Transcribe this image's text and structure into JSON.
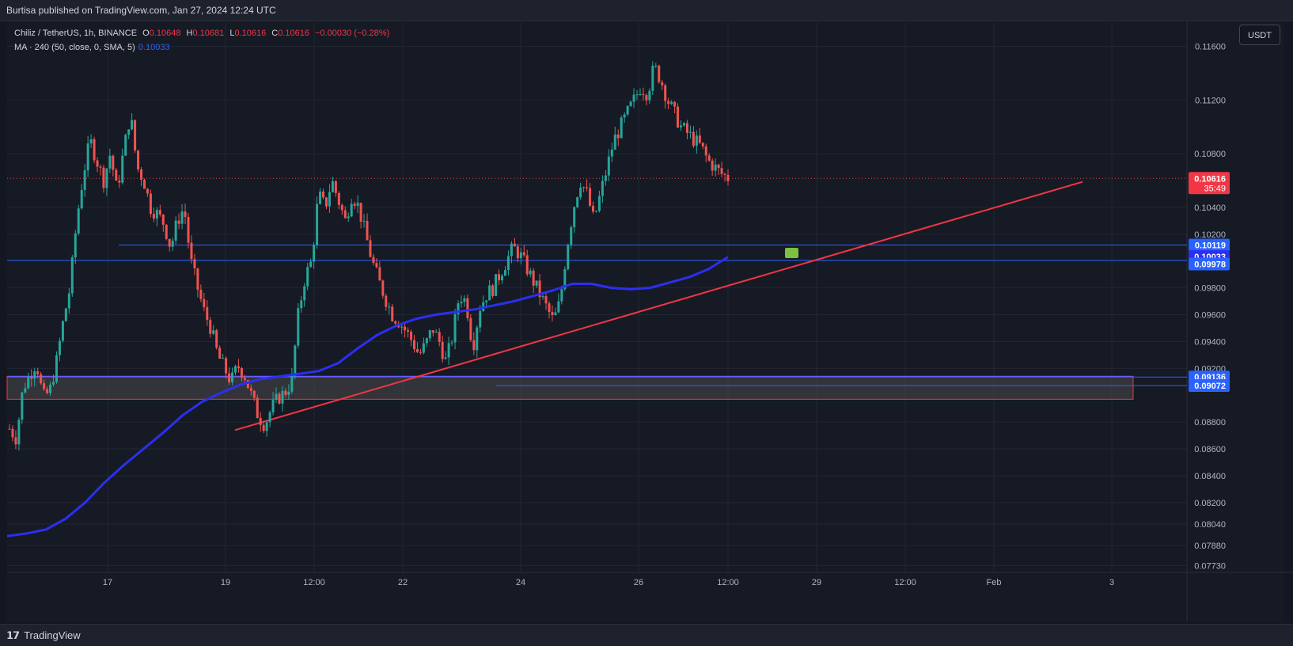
{
  "header": {
    "published": "Burtisa published on TradingView.com, Jan 27, 2024 12:24 UTC"
  },
  "legend": {
    "symbol": "Chiliz / TetherUS, 1h, BINANCE",
    "o_label": "O",
    "o_value": "0.10648",
    "h_label": "H",
    "h_value": "0.10681",
    "l_label": "L",
    "l_value": "0.10616",
    "c_label": "C",
    "c_value": "0.10616",
    "change": "−0.00030 (−0.28%)",
    "ma_label": "MA · 240 (50, close, 0, SMA, 5)",
    "ma_value": "0.10033"
  },
  "currency_button": "USDT",
  "footer": {
    "brand": "TradingView",
    "brand_icon": "tradingview-logo-icon"
  },
  "colors": {
    "up": "#26a69a",
    "down": "#ef5350",
    "ma": "#2c2ff0",
    "trendline": "#f23645",
    "level": "#2962ff",
    "zone": "#4a4a4a"
  },
  "chart_data": {
    "type": "candlestick",
    "title": "Chiliz / TetherUS, 1h, BINANCE",
    "ylim": [
      0.0768,
      0.1178
    ],
    "y_ticks": [
      "0.11600",
      "0.11200",
      "0.10800",
      "0.10400",
      "0.10200",
      "0.09800",
      "0.09600",
      "0.09400",
      "0.09200",
      "0.08800",
      "0.08600",
      "0.08400",
      "0.08200",
      "0.08040",
      "0.07880",
      "0.07730"
    ],
    "x_ticks": [
      "17",
      "19",
      "12:00",
      "22",
      "24",
      "26",
      "12:00",
      "29",
      "12:00",
      "Feb",
      "3"
    ],
    "price_labels": [
      {
        "value": "0.10616",
        "sub": "35:49",
        "color": "#f23645",
        "level": 0.10616
      },
      {
        "value": "0.10119",
        "color": "#2962ff",
        "level": 0.10119
      },
      {
        "value": "0.10033",
        "color": "#2c2ff0",
        "level": 0.10033
      },
      {
        "value": "0.09978",
        "color": "#2962ff",
        "level": 0.09978
      },
      {
        "value": "0.09136",
        "color": "#2962ff",
        "level": 0.09136
      },
      {
        "value": "0.09072",
        "color": "#2962ff",
        "level": 0.09072
      }
    ],
    "horizontal_levels": [
      0.10119,
      0.10004
    ],
    "support_zone": [
      0.0914,
      0.0897
    ],
    "trendline": [
      [
        0.0874,
        0
      ],
      [
        0.1059,
        1
      ]
    ],
    "series": [
      {
        "kind": "candles",
        "close_path": [
          0.0875,
          0.0868,
          0.0905,
          0.0915,
          0.0925,
          0.0898,
          0.0903,
          0.0925,
          0.0955,
          0.098,
          0.103,
          0.1065,
          0.109,
          0.1075,
          0.106,
          0.108,
          0.1052,
          0.1082,
          0.111,
          0.107,
          0.106,
          0.104,
          0.1035,
          0.1028,
          0.101,
          0.103,
          0.104,
          0.1,
          0.098,
          0.0962,
          0.095,
          0.093,
          0.092,
          0.091,
          0.0922,
          0.0915,
          0.09,
          0.0885,
          0.0878,
          0.089,
          0.0898,
          0.0902,
          0.091,
          0.096,
          0.0988,
          0.1,
          0.105,
          0.104,
          0.106,
          0.1045,
          0.103,
          0.105,
          0.104,
          0.102,
          0.1,
          0.0985,
          0.0972,
          0.096,
          0.0955,
          0.0948,
          0.094,
          0.093,
          0.0938,
          0.095,
          0.094,
          0.0925,
          0.0945,
          0.0975,
          0.097,
          0.0935,
          0.0965,
          0.0975,
          0.098,
          0.099,
          0.1,
          0.101,
          0.1005,
          0.0995,
          0.0985,
          0.0975,
          0.0965,
          0.0955,
          0.097,
          0.101,
          0.104,
          0.106,
          0.105,
          0.103,
          0.105,
          0.107,
          0.109,
          0.11,
          0.111,
          0.112,
          0.113,
          0.1125,
          0.1145,
          0.1135,
          0.112,
          0.111,
          0.11,
          0.1095,
          0.109,
          0.1085,
          0.1075,
          0.107,
          0.1065,
          0.1062
        ]
      },
      {
        "kind": "ma",
        "name": "MA 240",
        "values": [
          0.0795,
          0.0797,
          0.08,
          0.0808,
          0.082,
          0.0835,
          0.0848,
          0.086,
          0.0872,
          0.0885,
          0.0895,
          0.0902,
          0.0908,
          0.0912,
          0.0914,
          0.0916,
          0.0918,
          0.0924,
          0.0935,
          0.0945,
          0.0952,
          0.0957,
          0.096,
          0.0962,
          0.0964,
          0.0967,
          0.097,
          0.0974,
          0.0978,
          0.0983,
          0.0983,
          0.098,
          0.0979,
          0.098,
          0.0984,
          0.0988,
          0.0994,
          0.1003
        ]
      }
    ]
  }
}
